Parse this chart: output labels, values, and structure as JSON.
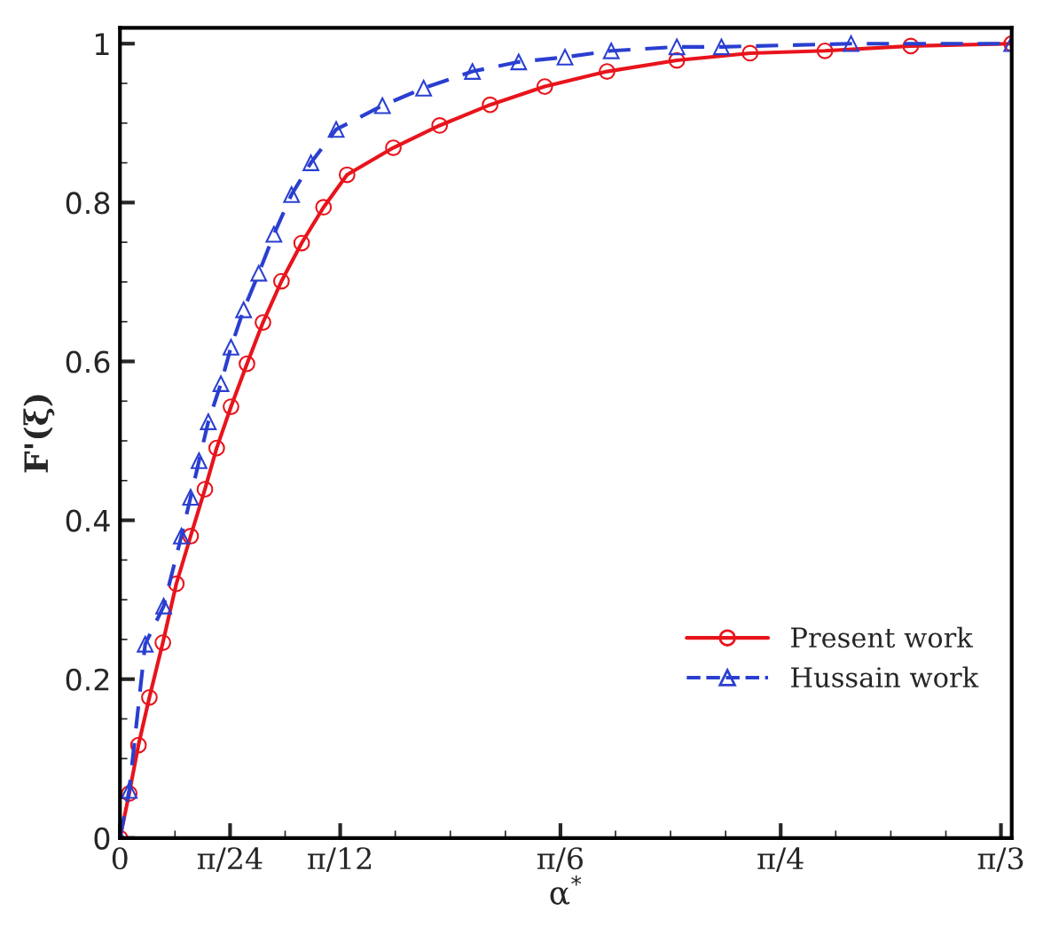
{
  "chart_data": {
    "type": "line",
    "xlabel": "α$^{*}$",
    "ylabel": "F'(ξ)",
    "xlim": [
      0,
      1.06
    ],
    "ylim": [
      0,
      1.02
    ],
    "xticks": [
      0,
      {
        "value": 0.1309,
        "label": "π/24"
      },
      {
        "value": 0.2618,
        "label": "π/12"
      },
      {
        "value": 0.5236,
        "label": "π/6"
      },
      {
        "value": 0.7854,
        "label": "π/4"
      },
      {
        "value": 1.0472,
        "label": "π/3"
      }
    ],
    "yticks": [
      0,
      0.2,
      0.4,
      0.6,
      0.8,
      1
    ],
    "grid": false,
    "legend": "right",
    "series": [
      {
        "name": "Present work",
        "color": "#e8141c",
        "marker": "circle",
        "line_style": "solid",
        "x": [
          0,
          0.011,
          0.022,
          0.035,
          0.051,
          0.067,
          0.084,
          0.101,
          0.115,
          0.132,
          0.151,
          0.17,
          0.192,
          0.216,
          0.242,
          0.27,
          0.325,
          0.38,
          0.44,
          0.505,
          0.579,
          0.662,
          0.749,
          0.838,
          0.94,
          1.06
        ],
        "values": [
          0,
          0.056,
          0.117,
          0.177,
          0.246,
          0.32,
          0.38,
          0.439,
          0.491,
          0.543,
          0.597,
          0.649,
          0.701,
          0.749,
          0.794,
          0.835,
          0.869,
          0.897,
          0.923,
          0.946,
          0.965,
          0.979,
          0.988,
          0.991,
          0.997,
          1.0
        ]
      },
      {
        "name": "Hussain work",
        "color": "#2a3fd0",
        "marker": "triangle",
        "line_style": "dashed",
        "x": [
          0,
          0.011,
          0.03,
          0.052,
          0.073,
          0.084,
          0.094,
          0.105,
          0.12,
          0.132,
          0.147,
          0.165,
          0.183,
          0.204,
          0.227,
          0.257,
          0.312,
          0.361,
          0.419,
          0.474,
          0.529,
          0.584,
          0.662,
          0.715,
          0.869,
          1.06
        ],
        "values": [
          0,
          0.06,
          0.244,
          0.292,
          0.38,
          0.429,
          0.475,
          0.524,
          0.572,
          0.618,
          0.665,
          0.711,
          0.76,
          0.81,
          0.85,
          0.892,
          0.922,
          0.944,
          0.965,
          0.977,
          0.983,
          0.991,
          0.996,
          0.996,
          1.0,
          1.0
        ]
      }
    ]
  }
}
